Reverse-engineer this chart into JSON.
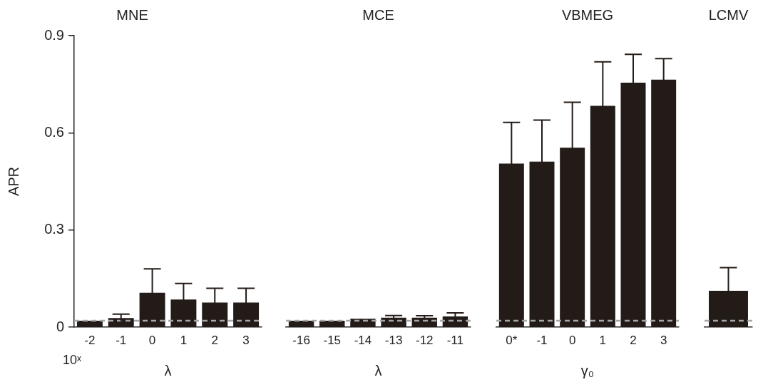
{
  "chart_data": [
    {
      "type": "bar",
      "title": "MNE",
      "xlabel": "λ",
      "ylabel": "APR",
      "categories": [
        "-2",
        "-1",
        "0",
        "1",
        "2",
        "3"
      ],
      "values": [
        0.02,
        0.028,
        0.106,
        0.085,
        0.076,
        0.076
      ],
      "errors": [
        null,
        0.012,
        0.074,
        0.05,
        0.044,
        0.044
      ],
      "color": "#231b17",
      "ylim": [
        0,
        0.9
      ],
      "yticks": [
        0,
        0.3,
        0.6,
        0.9
      ],
      "ref_lines": [
        {
          "axis": "y",
          "value": 0.02,
          "color": "#a6a6a6",
          "line_style": "dashed"
        }
      ],
      "annotations": [
        "10ˣ"
      ]
    },
    {
      "type": "bar",
      "title": "MCE",
      "xlabel": "λ",
      "categories": [
        "-16",
        "-15",
        "-14",
        "-13",
        "-12",
        "-11"
      ],
      "values": [
        0.02,
        0.02,
        0.026,
        0.029,
        0.029,
        0.033
      ],
      "errors": [
        null,
        null,
        null,
        0.007,
        0.006,
        0.011
      ],
      "color": "#231b17",
      "ylim": [
        0,
        0.9
      ],
      "tick_labels": "x",
      "ref_lines": [
        {
          "axis": "y",
          "value": 0.02,
          "color": "#a6a6a6",
          "line_style": "dashed"
        }
      ]
    },
    {
      "type": "bar",
      "title": "VBMEG",
      "xlabel": "γ₀",
      "categories": [
        "0*",
        "-1",
        "0",
        "1",
        "2",
        "3"
      ],
      "values": [
        0.505,
        0.511,
        0.554,
        0.683,
        0.755,
        0.764
      ],
      "errors": [
        0.127,
        0.128,
        0.14,
        0.136,
        0.087,
        0.065
      ],
      "color": "#231b17",
      "ylim": [
        0,
        0.9
      ],
      "tick_labels": "x",
      "ref_lines": [
        {
          "axis": "y",
          "value": 0.02,
          "color": "#a6a6a6",
          "line_style": "dashed"
        }
      ]
    },
    {
      "type": "bar",
      "title": "LCMV",
      "categories": [
        null
      ],
      "values": [
        0.112
      ],
      "errors": [
        0.072
      ],
      "color": "#231b17",
      "ylim": [
        0,
        0.9
      ],
      "tick_labels": "x",
      "ref_lines": [
        {
          "axis": "y",
          "value": 0.02,
          "color": "#a6a6a6",
          "line_style": "dashed"
        }
      ]
    }
  ]
}
